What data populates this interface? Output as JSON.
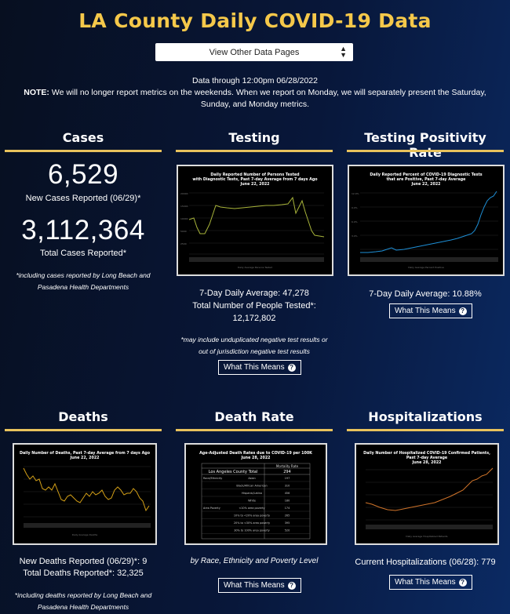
{
  "page": {
    "title": "LA County Daily COVID-19 Data",
    "selector_label": "View Other Data Pages",
    "data_through": "Data through 12:00pm 06/28/2022",
    "note_bold": "NOTE:",
    "note_text": " We will no longer report metrics on the weekends. When we report on Monday, we will separately present the Saturday, Sunday, and Monday metrics."
  },
  "cases": {
    "heading": "Cases",
    "new_value": "6,529",
    "new_label": "New Cases Reported (06/29)*",
    "total_value": "3,112,364",
    "total_label": "Total Cases Reported*",
    "footnote": "*including cases reported by Long Beach and Pasadena Health Departments"
  },
  "testing": {
    "heading": "Testing",
    "chart_title": "Daily Reported Number of Persons Tested with Diagnostic Tests, Past 7-day Average from 7 days Ago June 22, 2022",
    "avg_label": "7-Day Daily Average: 47,278",
    "total_label": "Total Number of People Tested*:",
    "total_value": "12,172,802",
    "footnote": "*may include unduplicated negative test results or out of jurisdiction negative test results",
    "button_label": "What This Means"
  },
  "positivity": {
    "heading": "Testing Positivity Rate",
    "chart_title": "Daily Reported Percent of COVID-19 Diagnostic Tests that are Positive, Past 7-day Average June 22, 2022",
    "avg_label": "7-Day Daily Average: 10.88%",
    "button_label": "What This Means"
  },
  "deaths": {
    "heading": "Deaths",
    "chart_title": "Daily Number of Deaths, Past 7-day Average from 7 days Ago June 22, 2022",
    "new_label": "New Deaths Reported (06/29)*: 9",
    "total_label": "Total Deaths Reported*: 32,325",
    "footnote": "*including deaths reported by Long Beach and Pasadena Health Departments"
  },
  "death_rate": {
    "heading": "Death Rate",
    "chart_title": "Age-Adjusted Death Rates due to COVID-19 per 100K June 28, 2022",
    "table_header": "Mortality Rate",
    "county_label": "Los Angeles County Total",
    "county_value": "294",
    "rows": [
      {
        "group": "Race/Ethnicity",
        "label": "Asian",
        "value": "197"
      },
      {
        "group": "",
        "label": "Black/African American",
        "value": "310"
      },
      {
        "group": "",
        "label": "Hispanic/Latino",
        "value": "456"
      },
      {
        "group": "",
        "label": "White",
        "value": "180"
      },
      {
        "group": "Area Poverty",
        "label": "<10% area poverty",
        "value": "174"
      },
      {
        "group": "",
        "label": "10% to <20% area poverty",
        "value": "265"
      },
      {
        "group": "",
        "label": "20% to <30% area poverty",
        "value": "395"
      },
      {
        "group": "",
        "label": "30% to 100% area poverty",
        "value": "520"
      }
    ],
    "caption": "by Race, Ethnicity and Poverty Level",
    "button_label": "What This Means"
  },
  "hospitalizations": {
    "heading": "Hospitalizations",
    "chart_title": "Daily Number of Hospitalized COVID-19 Confirmed Patients, Past 7-day Average June 28, 2022",
    "current_label": "Current Hospitalizations (06/28): 779",
    "button_label": "What This Means"
  },
  "colors": {
    "accent": "#f5c84a",
    "testing_line": "#a8b43a",
    "positivity_line": "#1e8fd6",
    "deaths_line": "#d4a017",
    "hosp_line": "#d0742a"
  }
}
